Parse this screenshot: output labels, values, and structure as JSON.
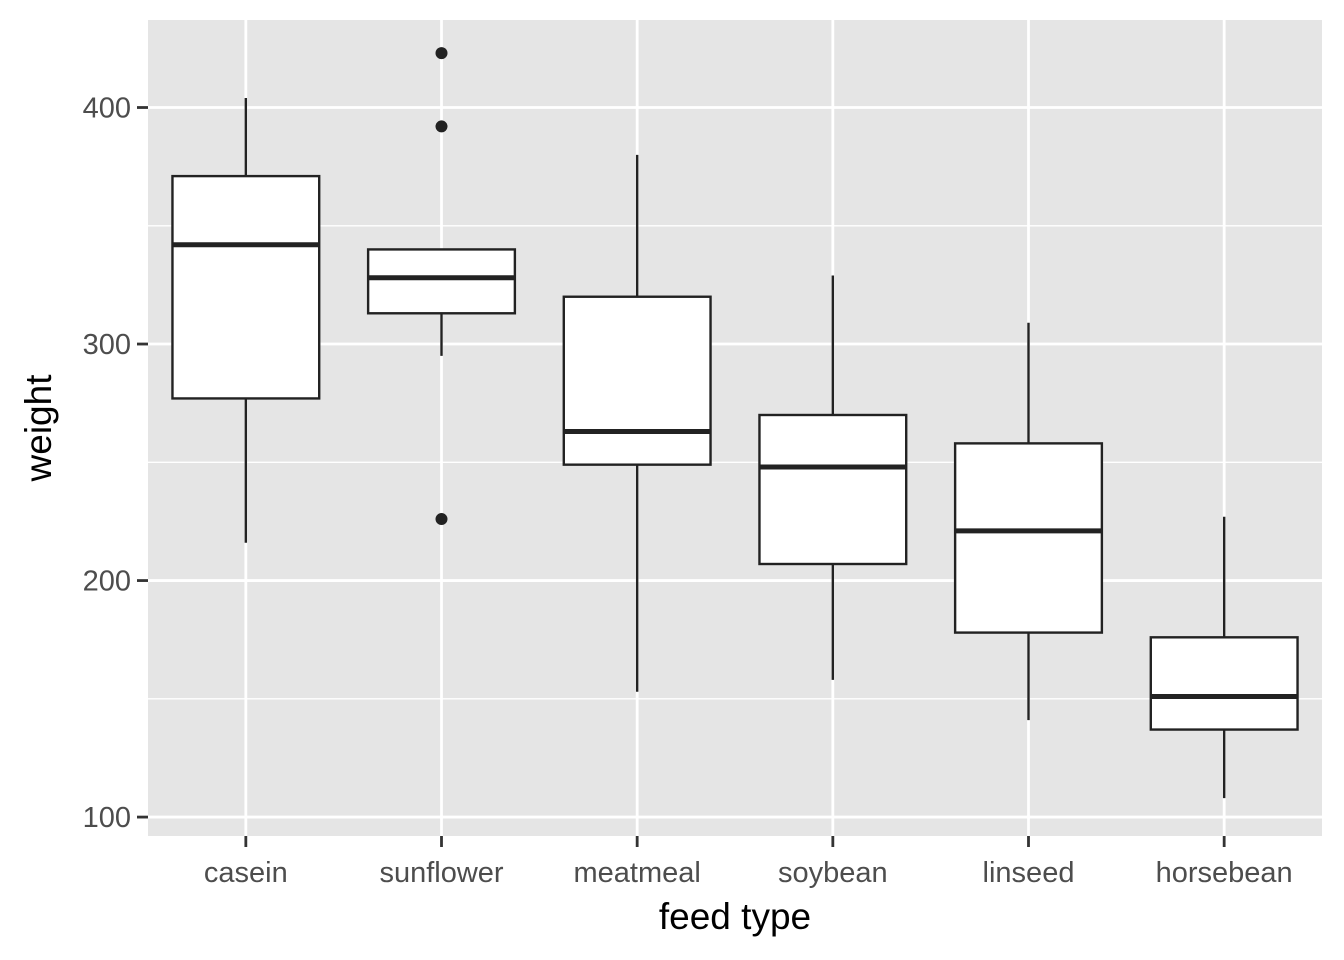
{
  "chart_data": {
    "type": "box",
    "title": "",
    "xlabel": "feed type",
    "ylabel": "weight",
    "ylim": [
      92,
      437
    ],
    "yticks": [
      100,
      200,
      300,
      400
    ],
    "grid": true,
    "legend": "none",
    "colors": {
      "panel": "#e5e5e5",
      "grid": "#ffffff",
      "box_fill": "#ffffff",
      "box_line": "#222222",
      "tick": "#333333"
    },
    "categories": [
      "casein",
      "sunflower",
      "meatmeal",
      "soybean",
      "linseed",
      "horsebean"
    ],
    "boxes": [
      {
        "name": "casein",
        "whisker_low": 216,
        "q1": 277,
        "median": 342,
        "q3": 371,
        "whisker_high": 404,
        "outliers": []
      },
      {
        "name": "sunflower",
        "whisker_low": 295,
        "q1": 313,
        "median": 328,
        "q3": 340,
        "whisker_high": 340,
        "outliers": [
          226,
          392,
          423
        ]
      },
      {
        "name": "meatmeal",
        "whisker_low": 153,
        "q1": 249,
        "median": 263,
        "q3": 320,
        "whisker_high": 380,
        "outliers": []
      },
      {
        "name": "soybean",
        "whisker_low": 158,
        "q1": 207,
        "median": 248,
        "q3": 270,
        "whisker_high": 329,
        "outliers": []
      },
      {
        "name": "linseed",
        "whisker_low": 141,
        "q1": 178,
        "median": 221,
        "q3": 258,
        "whisker_high": 309,
        "outliers": []
      },
      {
        "name": "horsebean",
        "whisker_low": 108,
        "q1": 137,
        "median": 151,
        "q3": 176,
        "whisker_high": 227,
        "outliers": []
      }
    ]
  }
}
